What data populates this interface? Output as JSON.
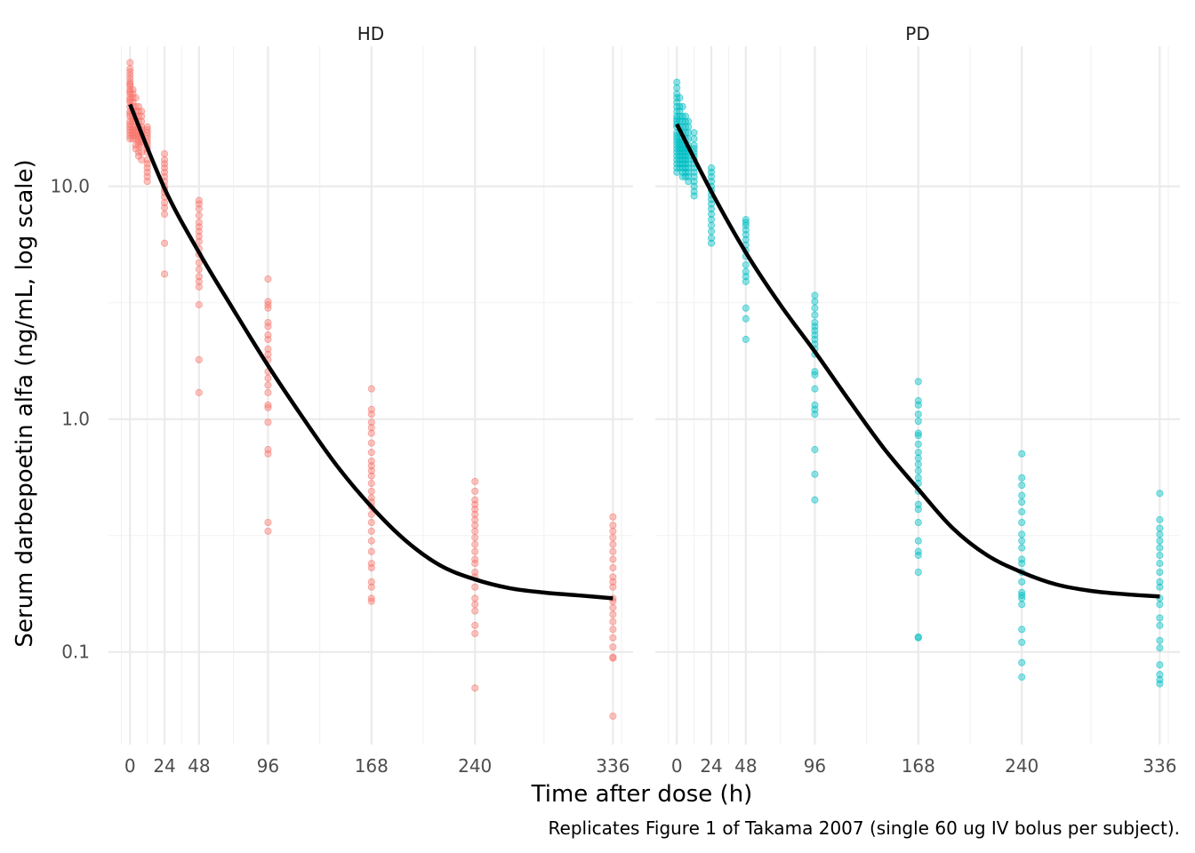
{
  "chart_data": {
    "type": "scatter",
    "xlabel": "Time after dose (h)",
    "ylabel": "Serum darbepoetin alfa (ng/mL, log scale)",
    "caption": "Replicates Figure 1 of Takama 2007 (single 60 ug IV bolus per subject).",
    "y_scale": "log10",
    "ylim": [
      0.04,
      40
    ],
    "xlim": [
      -15,
      350
    ],
    "x_ticks": [
      0,
      24,
      48,
      96,
      168,
      240,
      336
    ],
    "x_tick_labels": [
      "0",
      "24",
      "48",
      "96",
      "168",
      "240",
      "336"
    ],
    "y_ticks": [
      0.1,
      1.0,
      10.0
    ],
    "y_tick_labels": [
      "0.1",
      "1.0",
      "10.0"
    ],
    "grid": true,
    "legend": "none",
    "colors": {
      "HD": "#F8766D",
      "PD": "#00BFC4",
      "fit": "#000000"
    },
    "panels": [
      {
        "name": "HD",
        "color": "#F8766D",
        "observations": [
          {
            "time": 0,
            "conc": [
              34,
              32,
              31,
              30,
              29,
              28,
              27.5,
              27,
              26,
              25.5,
              25,
              24,
              23.5,
              23,
              22,
              21,
              20.5,
              20,
              19,
              18.5,
              18,
              17.5,
              17,
              16.5,
              16
            ]
          },
          {
            "time": 2,
            "conc": [
              26,
              25,
              24,
              23,
              22,
              21,
              20,
              19.5,
              19,
              18,
              17.5,
              17,
              16.5,
              16
            ]
          },
          {
            "time": 4,
            "conc": [
              24,
              22,
              21,
              20,
              19,
              18,
              17.5,
              17,
              16.5,
              16,
              15,
              14.5
            ]
          },
          {
            "time": 6,
            "conc": [
              22,
              21,
              20,
              19,
              18,
              17,
              16.5,
              16,
              15.5,
              15,
              14,
              13.5
            ]
          },
          {
            "time": 8,
            "conc": [
              21,
              20,
              19,
              18,
              17.5,
              17,
              16.5,
              16,
              15.5,
              15,
              14,
              13
            ]
          },
          {
            "time": 12,
            "conc": [
              18,
              17.5,
              17,
              16.5,
              16,
              15.5,
              15,
              14.5,
              14,
              13,
              12.5,
              12,
              11.5,
              11,
              10.5
            ]
          },
          {
            "time": 24,
            "conc": [
              13.8,
              13,
              12.5,
              12,
              11.5,
              11,
              10.5,
              10,
              9.7,
              9.4,
              9,
              8.5,
              8.1,
              7.6,
              5.7,
              4.2
            ]
          },
          {
            "time": 48,
            "conc": [
              8.7,
              8.4,
              8,
              7.5,
              7,
              6.7,
              6.4,
              6.1,
              5.8,
              5.4,
              5.1,
              4.7,
              4.4,
              4.1,
              3.9,
              3.7,
              3.1,
              1.8,
              1.3
            ]
          },
          {
            "time": 96,
            "conc": [
              4.0,
              3.2,
              3.1,
              3.0,
              2.6,
              2.5,
              2.3,
              2.2,
              2.0,
              1.9,
              1.8,
              1.6,
              1.5,
              1.4,
              1.3,
              1.15,
              1.12,
              0.97,
              0.74,
              0.71,
              0.36,
              0.33
            ]
          },
          {
            "time": 168,
            "conc": [
              1.35,
              1.1,
              1.05,
              0.97,
              0.92,
              0.87,
              0.79,
              0.72,
              0.66,
              0.63,
              0.6,
              0.57,
              0.53,
              0.49,
              0.46,
              0.44,
              0.42,
              0.39,
              0.36,
              0.33,
              0.3,
              0.27,
              0.24,
              0.23,
              0.2,
              0.19,
              0.17,
              0.165
            ]
          },
          {
            "time": 240,
            "conc": [
              0.54,
              0.49,
              0.45,
              0.43,
              0.41,
              0.39,
              0.37,
              0.35,
              0.33,
              0.31,
              0.29,
              0.27,
              0.25,
              0.24,
              0.22,
              0.21,
              0.19,
              0.17,
              0.16,
              0.15,
              0.13,
              0.12,
              0.07
            ]
          },
          {
            "time": 336,
            "conc": [
              0.38,
              0.35,
              0.33,
              0.31,
              0.29,
              0.27,
              0.25,
              0.23,
              0.21,
              0.2,
              0.19,
              0.17,
              0.165,
              0.155,
              0.145,
              0.135,
              0.125,
              0.115,
              0.105,
              0.095,
              0.094,
              0.053
            ]
          }
        ],
        "fit": {
          "time": [
            0,
            24,
            48,
            72,
            96,
            120,
            144,
            168,
            192,
            216,
            240,
            264,
            288,
            312,
            336
          ],
          "conc": [
            22.5,
            9.8,
            5.2,
            2.95,
            1.7,
            1.02,
            0.63,
            0.42,
            0.3,
            0.235,
            0.205,
            0.188,
            0.18,
            0.175,
            0.17
          ]
        }
      },
      {
        "name": "PD",
        "color": "#00BFC4",
        "observations": [
          {
            "time": 0,
            "conc": [
              28,
              26.5,
              25,
              24,
              23,
              22,
              21,
              20,
              19.5,
              19,
              18.5,
              18,
              17,
              16.5,
              16,
              15.5,
              15,
              14.5,
              14,
              13.5,
              13,
              12.5,
              12,
              11.5
            ]
          },
          {
            "time": 2,
            "conc": [
              24,
              22,
              21,
              20,
              19,
              18,
              17,
              16,
              15.5,
              15,
              14.5,
              14,
              13.5,
              13,
              12.5,
              12
            ]
          },
          {
            "time": 4,
            "conc": [
              22,
              20,
              19,
              18,
              17,
              16,
              15.5,
              15,
              14.5,
              14,
              13.5,
              13,
              12.5,
              12,
              11.5,
              11
            ]
          },
          {
            "time": 6,
            "conc": [
              20,
              19,
              18,
              17,
              16,
              15,
              14.5,
              14,
              13.5,
              13,
              12.5,
              12,
              11.5,
              11
            ]
          },
          {
            "time": 8,
            "conc": [
              19,
              18,
              17,
              16,
              15,
              14.5,
              14,
              13.5,
              13,
              12.5,
              12,
              11.5,
              11,
              10.5
            ]
          },
          {
            "time": 12,
            "conc": [
              17,
              16,
              15,
              14.5,
              14,
              13.5,
              13,
              12.5,
              12,
              11.5,
              11,
              10.5,
              10,
              9.5,
              9.1
            ]
          },
          {
            "time": 24,
            "conc": [
              12,
              11.5,
              11,
              10.5,
              10,
              9.6,
              9.2,
              8.8,
              8.4,
              8,
              7.6,
              7.2,
              6.8,
              6.4,
              6,
              5.7
            ]
          },
          {
            "time": 48,
            "conc": [
              7.2,
              7,
              6.8,
              6.5,
              6.2,
              5.9,
              5.6,
              5.3,
              5,
              4.6,
              4.3,
              4.1,
              3.9,
              3.0,
              2.7,
              2.2
            ]
          },
          {
            "time": 96,
            "conc": [
              3.4,
              3.2,
              3.0,
              2.8,
              2.6,
              2.5,
              2.4,
              2.3,
              2.2,
              2.1,
              2.0,
              1.9,
              1.6,
              1.55,
              1.35,
              1.15,
              1.1,
              1.05,
              0.74,
              0.58,
              0.45
            ]
          },
          {
            "time": 168,
            "conc": [
              1.45,
              1.2,
              1.15,
              1.05,
              0.98,
              0.87,
              0.85,
              0.78,
              0.72,
              0.68,
              0.64,
              0.6,
              0.56,
              0.53,
              0.49,
              0.43,
              0.41,
              0.36,
              0.3,
              0.27,
              0.26,
              0.22,
              0.116,
              0.115
            ]
          },
          {
            "time": 240,
            "conc": [
              0.71,
              0.56,
              0.52,
              0.47,
              0.44,
              0.4,
              0.36,
              0.32,
              0.3,
              0.28,
              0.25,
              0.24,
              0.22,
              0.2,
              0.18,
              0.175,
              0.17,
              0.16,
              0.125,
              0.11,
              0.09,
              0.078
            ]
          },
          {
            "time": 336,
            "conc": [
              0.48,
              0.37,
              0.34,
              0.32,
              0.3,
              0.28,
              0.26,
              0.24,
              0.22,
              0.2,
              0.19,
              0.17,
              0.16,
              0.14,
              0.13,
              0.112,
              0.104,
              0.088,
              0.08,
              0.076,
              0.073
            ]
          }
        ],
        "fit": {
          "time": [
            0,
            24,
            48,
            72,
            96,
            120,
            144,
            168,
            192,
            216,
            240,
            264,
            288,
            312,
            336
          ],
          "conc": [
            18.5,
            9.5,
            5.2,
            3.1,
            1.95,
            1.2,
            0.75,
            0.5,
            0.34,
            0.26,
            0.22,
            0.195,
            0.183,
            0.177,
            0.173
          ]
        }
      }
    ]
  }
}
